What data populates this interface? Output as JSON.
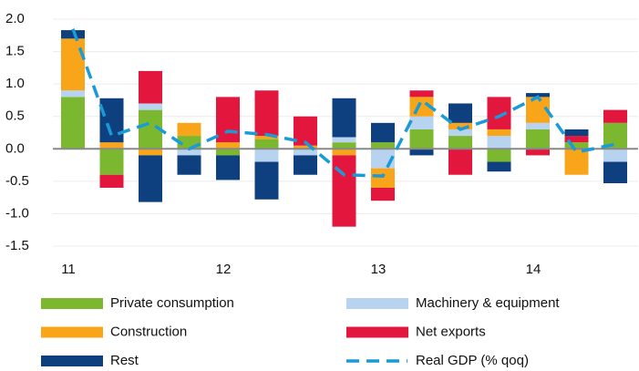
{
  "chart_data": {
    "type": "bar",
    "stacked": true,
    "categories": [
      "11",
      null,
      null,
      null,
      "12",
      null,
      null,
      null,
      "13",
      null,
      null,
      null,
      "14",
      null,
      null
    ],
    "series": [
      {
        "name": "Private consumption",
        "color": "#7cb82f",
        "values": [
          0.8,
          -0.4,
          0.6,
          0.2,
          -0.1,
          0.15,
          0,
          0.1,
          0.1,
          0.3,
          0.2,
          -0.2,
          0.3,
          0.1,
          0.4
        ]
      },
      {
        "name": "Machinery & equipment",
        "color": "#b7d3ef",
        "values": [
          0.1,
          0,
          0.1,
          -0.1,
          0,
          -0.2,
          -0.1,
          0.08,
          -0.3,
          0.2,
          0.1,
          0.2,
          0.1,
          0,
          -0.2
        ]
      },
      {
        "name": "Construction",
        "color": "#f9a51a",
        "values": [
          0.8,
          0.1,
          -0.1,
          0.2,
          0.1,
          0.05,
          0.05,
          -0.1,
          -0.3,
          0.3,
          0.1,
          0.1,
          0.4,
          -0.4,
          0
        ]
      },
      {
        "name": "Net exports",
        "color": "#e3173e",
        "values": [
          0,
          -0.2,
          0.5,
          0,
          0.7,
          0.7,
          0.45,
          -1.1,
          -0.2,
          0.1,
          -0.4,
          0.5,
          -0.1,
          0.1,
          0.2
        ]
      },
      {
        "name": "Rest",
        "color": "#0e3f7e",
        "values": [
          0.13,
          0.68,
          -0.72,
          -0.3,
          -0.38,
          -0.58,
          -0.3,
          0.6,
          0.3,
          -0.1,
          0.3,
          -0.15,
          0.06,
          0.1,
          -0.33
        ]
      },
      {
        "name": "Real GDP (% qoq)",
        "color": "#1a9ad6",
        "type": "line",
        "values": [
          1.85,
          0.2,
          0.4,
          0.0,
          0.27,
          0.22,
          0.1,
          -0.4,
          -0.42,
          0.75,
          0.3,
          0.5,
          0.8,
          -0.05,
          0.07
        ]
      }
    ],
    "ylim": [
      -1.5,
      2.0
    ],
    "yticks": [
      {
        "value": -1.5,
        "label": "-1.5"
      },
      {
        "value": -1.0,
        "label": "-1.0"
      },
      {
        "value": -0.5,
        "label": "-0.5"
      },
      {
        "value": 0,
        "label": "0.0"
      },
      {
        "value": 0.5,
        "label": "0.5"
      },
      {
        "value": 1.0,
        "label": "1.0"
      },
      {
        "value": 1.5,
        "label": "1.5"
      },
      {
        "value": 2.0,
        "label": "2.0"
      }
    ],
    "grid": true
  }
}
